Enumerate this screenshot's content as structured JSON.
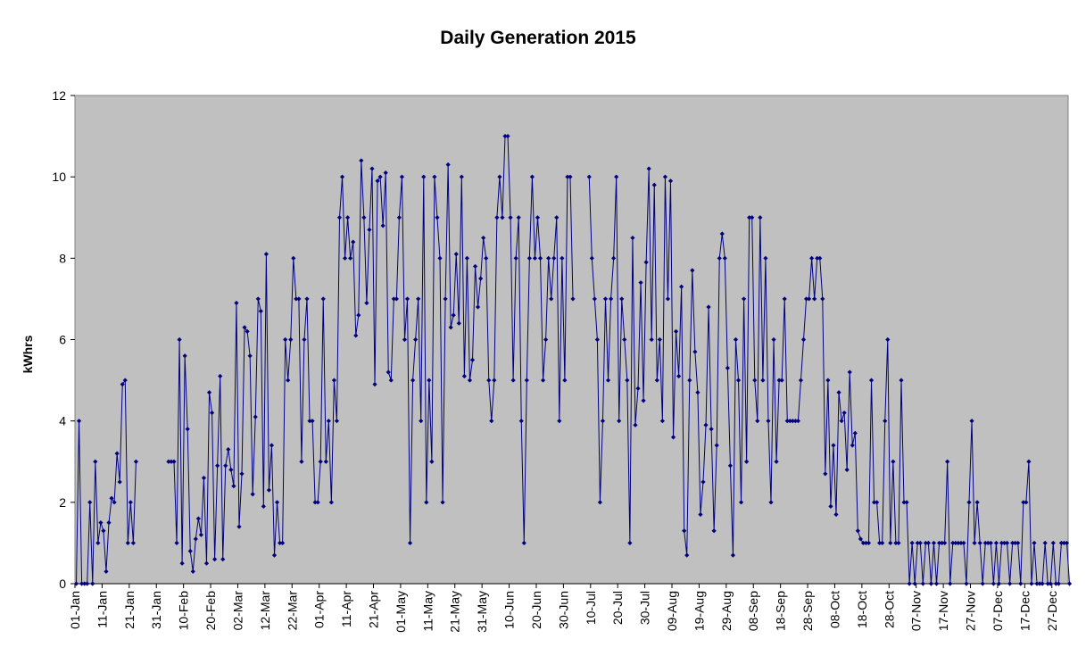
{
  "chart_data": {
    "type": "line",
    "title": "Daily Generation 2015",
    "xlabel": "",
    "ylabel": "kWhrs",
    "ylim": [
      0,
      12
    ],
    "yticks": [
      0,
      2,
      4,
      6,
      8,
      10,
      12
    ],
    "xlim": [
      0,
      366
    ],
    "xticks": [
      {
        "label": "01-Jan",
        "day": 0
      },
      {
        "label": "11-Jan",
        "day": 10
      },
      {
        "label": "21-Jan",
        "day": 20
      },
      {
        "label": "31-Jan",
        "day": 30
      },
      {
        "label": "10-Feb",
        "day": 40
      },
      {
        "label": "20-Feb",
        "day": 50
      },
      {
        "label": "02-Mar",
        "day": 60
      },
      {
        "label": "12-Mar",
        "day": 70
      },
      {
        "label": "22-Mar",
        "day": 80
      },
      {
        "label": "01-Apr",
        "day": 90
      },
      {
        "label": "11-Apr",
        "day": 100
      },
      {
        "label": "21-Apr",
        "day": 110
      },
      {
        "label": "01-May",
        "day": 120
      },
      {
        "label": "11-May",
        "day": 130
      },
      {
        "label": "21-May",
        "day": 140
      },
      {
        "label": "31-May",
        "day": 150
      },
      {
        "label": "10-Jun",
        "day": 160
      },
      {
        "label": "20-Jun",
        "day": 170
      },
      {
        "label": "30-Jun",
        "day": 180
      },
      {
        "label": "10-Jul",
        "day": 190
      },
      {
        "label": "20-Jul",
        "day": 200
      },
      {
        "label": "30-Jul",
        "day": 210
      },
      {
        "label": "09-Aug",
        "day": 220
      },
      {
        "label": "19-Aug",
        "day": 230
      },
      {
        "label": "29-Aug",
        "day": 240
      },
      {
        "label": "08-Sep",
        "day": 250
      },
      {
        "label": "18-Sep",
        "day": 260
      },
      {
        "label": "28-Sep",
        "day": 270
      },
      {
        "label": "08-Oct",
        "day": 280
      },
      {
        "label": "18-Oct",
        "day": 290
      },
      {
        "label": "28-Oct",
        "day": 300
      },
      {
        "label": "07-Nov",
        "day": 310
      },
      {
        "label": "17-Nov",
        "day": 320
      },
      {
        "label": "27-Nov",
        "day": 330
      },
      {
        "label": "07-Dec",
        "day": 340
      },
      {
        "label": "17-Dec",
        "day": 350
      },
      {
        "label": "27-Dec",
        "day": 360
      }
    ],
    "grid": false,
    "legend": "none",
    "colors": {
      "line": "#000080",
      "plot_bg": "#c0c0c0",
      "page_bg": "#ffffff"
    },
    "series": [
      {
        "segments": [
          {
            "start": 0,
            "values": [
              0,
              4,
              0,
              0,
              0,
              2,
              0,
              3,
              1,
              1.5,
              1.3,
              0.3,
              1.5,
              2.1,
              2,
              3.2,
              2.5,
              4.9,
              5,
              1,
              2,
              1,
              3
            ]
          },
          {
            "start": 34,
            "values": [
              3,
              3,
              3,
              1,
              6,
              0.5,
              5.6,
              3.8,
              0.8,
              0.3,
              1.1,
              1.6,
              1.2,
              2.6,
              0.5,
              4.7,
              4.2,
              0.6,
              2.9,
              5.1,
              0.6,
              2.9,
              3.3,
              2.8,
              2.4,
              6.9,
              1.4,
              2.7,
              6.3,
              6.2,
              5.6,
              2.2,
              4.1,
              7,
              6.7,
              1.9,
              8.1,
              2.3,
              3.4,
              0.7,
              2,
              1,
              1,
              6,
              5,
              6,
              8,
              7,
              7,
              3,
              6,
              7,
              4,
              4,
              2,
              2,
              3,
              7,
              3,
              4,
              2,
              5,
              4,
              9,
              10,
              8,
              9,
              8,
              8.4,
              6.1,
              6.6,
              10.4,
              9,
              6.9,
              8.7,
              10.2,
              4.9,
              9.9,
              10,
              8.8,
              10.1,
              5.2,
              5,
              7,
              7,
              9,
              10,
              6,
              7,
              1,
              5,
              6,
              7,
              4,
              10,
              2,
              5,
              3,
              10,
              9,
              8,
              2,
              7,
              10.3,
              6.3,
              6.6,
              8.1,
              6.4,
              10,
              5.1,
              8,
              5,
              5.5,
              7.8,
              6.8,
              7.5,
              8.5,
              8,
              5,
              4,
              5,
              9,
              10,
              9,
              11,
              11,
              9,
              5,
              8,
              9,
              4,
              1,
              5,
              8,
              10,
              8,
              9,
              8,
              5,
              6,
              8,
              7,
              8,
              9,
              4,
              8,
              5,
              10,
              10,
              7
            ]
          },
          {
            "start": 189,
            "values": [
              10,
              8,
              7,
              6,
              2,
              4,
              7,
              5,
              7,
              8,
              10,
              4,
              7,
              6,
              5,
              1,
              8.5,
              3.9,
              4.8,
              7.4,
              4.5,
              7.9,
              10.2,
              6,
              9.8,
              5,
              6,
              4,
              10,
              7,
              9.9,
              3.6,
              6.2,
              5.1,
              7.3,
              1.3,
              0.7,
              5,
              7.7,
              5.7,
              4.7,
              1.7,
              2.5,
              3.9,
              6.8,
              3.8,
              1.3,
              3.4,
              8,
              8.6,
              8,
              5.3,
              2.9,
              0.7,
              6,
              5,
              2,
              7,
              3,
              9,
              9,
              5,
              4,
              9,
              5,
              8,
              4,
              2,
              6,
              3,
              5,
              5,
              7,
              4,
              4,
              4,
              4,
              4,
              5,
              6,
              7,
              7,
              8,
              7,
              8,
              8,
              7,
              2.7,
              5,
              1.9,
              3.4,
              1.7,
              4.7,
              4,
              4.2,
              2.8,
              5.2,
              3.4,
              3.7,
              1.3,
              1.1,
              1,
              1,
              1,
              5,
              2,
              2,
              1,
              1,
              4,
              6,
              1,
              3,
              1,
              1,
              5,
              2,
              2,
              0,
              1,
              0,
              1,
              1,
              0,
              1,
              1,
              0,
              1,
              0,
              1,
              1,
              1,
              3,
              0,
              1,
              1,
              1,
              1,
              1,
              0,
              2,
              4,
              1,
              2,
              1,
              0,
              1,
              1,
              1,
              0,
              1,
              0,
              1,
              1,
              1,
              0,
              1,
              1,
              1,
              0,
              2,
              2,
              3,
              0,
              1,
              0,
              0,
              0,
              1,
              0,
              0,
              1,
              0,
              0,
              1,
              1,
              1,
              0
            ]
          }
        ]
      }
    ]
  }
}
